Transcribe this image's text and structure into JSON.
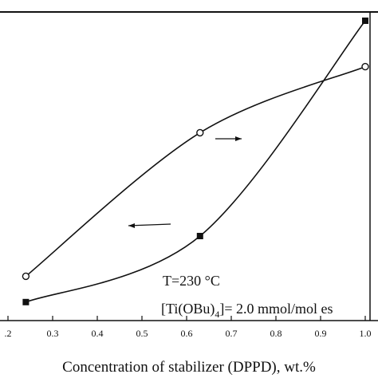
{
  "chart_data": {
    "type": "scatter",
    "title": "",
    "xlabel": "Concentration of stabilizer (DPPD), wt.%",
    "ylabel": "",
    "xlim": [
      0.2,
      1.0
    ],
    "ylim": [
      0,
      1
    ],
    "x_ticks": [
      ".2",
      "0.3",
      "0.4",
      "0.5",
      "0.6",
      "0.7",
      "0.8",
      "0.9",
      "1.0"
    ],
    "x_tick_values": [
      0.2,
      0.3,
      0.4,
      0.5,
      0.6,
      0.7,
      0.8,
      0.9,
      1.0
    ],
    "series": [
      {
        "marker": "open-circle",
        "points": [
          {
            "x": 0.24,
            "y": 0.11
          },
          {
            "x": 0.63,
            "y": 0.61
          },
          {
            "x": 1.0,
            "y": 0.84
          }
        ],
        "arrow": "right"
      },
      {
        "marker": "filled-square",
        "points": [
          {
            "x": 0.24,
            "y": 0.02
          },
          {
            "x": 0.63,
            "y": 0.25
          },
          {
            "x": 1.0,
            "y": 1.0
          }
        ],
        "arrow": "left"
      }
    ],
    "annotations": {
      "temperature": "T=230 °C",
      "catalyst_prefix": "[Ti(OBu)",
      "catalyst_subscript": "4",
      "catalyst_suffix": "]= 2.0 mmol/mol es"
    },
    "grid": false,
    "legend": "none",
    "colors": {
      "ink": "#111111",
      "background": "#ffffff"
    }
  }
}
